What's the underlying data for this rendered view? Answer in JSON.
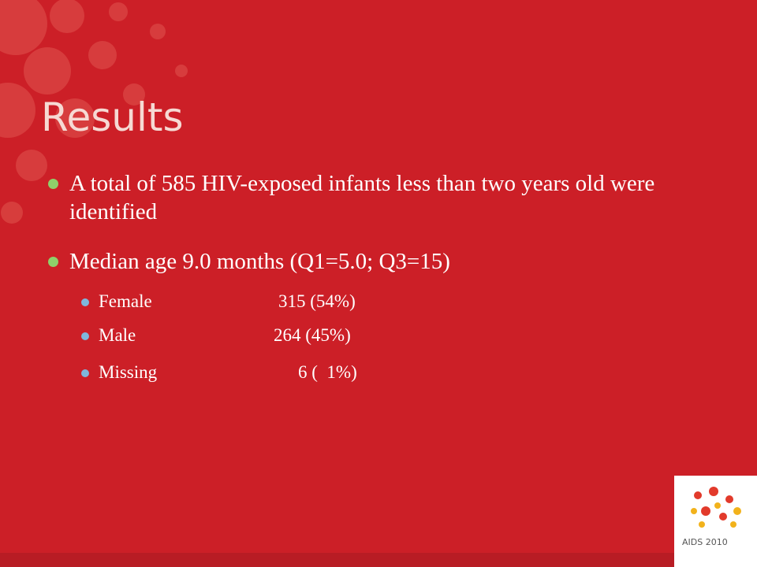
{
  "slide": {
    "title": "Results",
    "bullets": [
      "A total of 585 HIV-exposed infants less than two years old were identified",
      "Median age 9.0 months (Q1=5.0; Q3=15)"
    ],
    "sub_bullets": [
      {
        "label": "Female",
        "value": "315 (54%)"
      },
      {
        "label": "Male",
        "value": "264 (45%)"
      },
      {
        "label": "Missing",
        "value": "6 (  1%)"
      }
    ],
    "logo": "AIDS 2010"
  }
}
